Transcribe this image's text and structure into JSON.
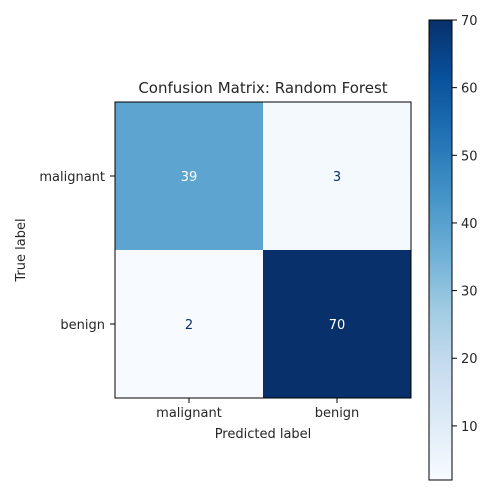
{
  "chart_data": {
    "type": "heatmap",
    "title": "Confusion Matrix: Random Forest",
    "xlabel": "Predicted label",
    "ylabel": "True label",
    "x_categories": [
      "malignant",
      "benign"
    ],
    "y_categories": [
      "malignant",
      "benign"
    ],
    "values": [
      [
        39,
        3
      ],
      [
        2,
        70
      ]
    ],
    "colormap": "Blues",
    "color_low": "#f7fbff",
    "color_high": "#08306b",
    "text_dark": "#08306b",
    "text_light": "#ffffff",
    "colorbar": {
      "range": [
        2,
        70
      ],
      "ticks": [
        "10",
        "20",
        "30",
        "40",
        "50",
        "60",
        "70"
      ]
    }
  }
}
